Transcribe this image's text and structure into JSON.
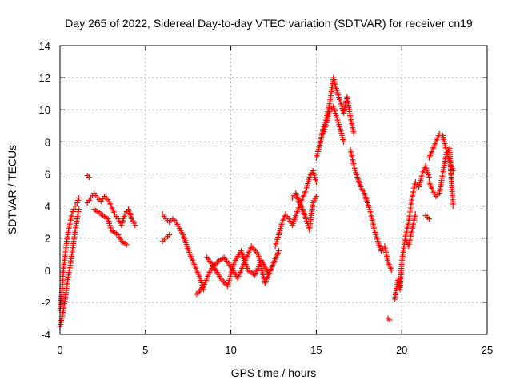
{
  "chart_data": {
    "type": "scatter",
    "title": "Day 265 of 2022, Sidereal Day-to-day VTEC variation (SDTVAR) for receiver cn19",
    "xlabel": "GPS time / hours",
    "ylabel": "SDTVAR / TECUs",
    "xlim": [
      0,
      25
    ],
    "ylim": [
      -4,
      14
    ],
    "xticks": [
      0,
      5,
      10,
      15,
      20,
      25
    ],
    "yticks": [
      -4,
      -2,
      0,
      2,
      4,
      6,
      8,
      10,
      12,
      14
    ],
    "grid": true,
    "marker": "+",
    "color": "#ff0000",
    "series": [
      {
        "name": "SDTVAR",
        "segments": [
          {
            "x": [
              0.0,
              0.1,
              0.2,
              0.3,
              0.4,
              0.5,
              0.6,
              0.7,
              0.8,
              0.9,
              1.0,
              1.1
            ],
            "y": [
              -3.5,
              -3.0,
              -2.5,
              -1.8,
              -1.0,
              -0.3,
              0.3,
              1.0,
              1.8,
              2.5,
              3.2,
              3.8
            ]
          },
          {
            "x": [
              0.0,
              0.1,
              0.2,
              0.3,
              0.4,
              0.5,
              0.6,
              0.7,
              0.8,
              0.9,
              1.0,
              1.1
            ],
            "y": [
              -2.5,
              -1.5,
              0.0,
              1.0,
              1.8,
              2.5,
              3.0,
              3.5,
              3.8,
              4.0,
              4.2,
              4.5
            ]
          },
          {
            "x": [
              1.6,
              1.7
            ],
            "y": [
              5.9,
              5.8
            ]
          },
          {
            "x": [
              1.6,
              1.8,
              2.0,
              2.2,
              2.4,
              2.6,
              2.8,
              3.0,
              3.2,
              3.4,
              3.6,
              3.8,
              4.0,
              4.2,
              4.4
            ],
            "y": [
              4.2,
              4.5,
              4.8,
              4.5,
              4.3,
              4.6,
              4.4,
              4.0,
              3.5,
              3.2,
              2.8,
              3.5,
              3.8,
              3.2,
              2.8
            ]
          },
          {
            "x": [
              2.0,
              2.4,
              2.8,
              3.0,
              3.4,
              3.6,
              3.9
            ],
            "y": [
              3.8,
              3.5,
              3.2,
              2.5,
              2.2,
              1.8,
              1.6
            ]
          },
          {
            "x": [
              6.0,
              6.2,
              6.4,
              6.6,
              6.8,
              7.0,
              7.2,
              7.4,
              7.6,
              7.8,
              8.0,
              8.2,
              8.4
            ],
            "y": [
              3.5,
              3.2,
              3.0,
              3.2,
              3.0,
              2.6,
              2.2,
              1.6,
              1.0,
              0.5,
              0.0,
              -0.5,
              -1.2
            ]
          },
          {
            "x": [
              6.0,
              6.2,
              6.4
            ],
            "y": [
              1.8,
              2.0,
              2.2
            ]
          },
          {
            "x": [
              8.0,
              8.4,
              8.8,
              9.2,
              9.6,
              10.0,
              10.4,
              10.8,
              11.2,
              11.6,
              12.0,
              12.4,
              12.8
            ],
            "y": [
              -1.5,
              -1.0,
              0.0,
              0.5,
              0.8,
              0.2,
              -0.5,
              0.5,
              1.5,
              1.0,
              -0.8,
              0.2,
              1.2
            ]
          },
          {
            "x": [
              8.6,
              9.0,
              9.4,
              9.8,
              10.2,
              10.6,
              11.0,
              11.4,
              11.8,
              12.2
            ],
            "y": [
              0.8,
              0.2,
              -0.5,
              -1.0,
              0.5,
              1.2,
              0.0,
              -0.3,
              0.6,
              -0.2
            ]
          },
          {
            "x": [
              12.6,
              12.8,
              13.0,
              13.2,
              13.4,
              13.6,
              13.8,
              14.0,
              14.2,
              14.4,
              14.6,
              14.8,
              15.0
            ],
            "y": [
              1.5,
              2.2,
              3.0,
              3.5,
              3.2,
              2.8,
              3.4,
              4.0,
              4.5,
              5.0,
              5.8,
              6.2,
              5.5
            ]
          },
          {
            "x": [
              13.6,
              13.8,
              14.0,
              14.2,
              14.4,
              14.6,
              14.8,
              15.0
            ],
            "y": [
              4.5,
              4.8,
              4.2,
              3.8,
              3.2,
              2.5,
              4.2,
              4.6
            ]
          },
          {
            "x": [
              15.0,
              15.2,
              15.4,
              15.6,
              15.8,
              16.0,
              16.2,
              16.4,
              16.6,
              16.8,
              17.0,
              17.2
            ],
            "y": [
              7.0,
              7.8,
              8.8,
              9.5,
              10.5,
              12.0,
              11.2,
              10.5,
              9.8,
              10.8,
              9.5,
              8.5
            ]
          },
          {
            "x": [
              15.4,
              15.6,
              15.8,
              16.0,
              16.2,
              16.4,
              16.6
            ],
            "y": [
              8.5,
              9.2,
              10.0,
              10.2,
              9.5,
              8.8,
              8.0
            ]
          },
          {
            "x": [
              17.0,
              17.2,
              17.4,
              17.6,
              17.8,
              18.0,
              18.2,
              18.4,
              18.6,
              18.8,
              19.0,
              19.2,
              19.4
            ],
            "y": [
              7.5,
              6.5,
              5.8,
              5.2,
              4.8,
              4.2,
              3.5,
              2.5,
              1.8,
              1.2,
              1.5,
              0.5,
              0.0
            ]
          },
          {
            "x": [
              19.2,
              19.3
            ],
            "y": [
              -3.0,
              -3.1
            ]
          },
          {
            "x": [
              19.6,
              19.7,
              19.8,
              19.9,
              20.0,
              20.2,
              20.4,
              20.6,
              20.8,
              21.0,
              21.2,
              21.4,
              21.6
            ],
            "y": [
              -1.8,
              -1.0,
              -0.5,
              -1.2,
              0.5,
              2.0,
              3.0,
              4.5,
              5.5,
              5.2,
              6.0,
              6.5,
              5.8
            ]
          },
          {
            "x": [
              20.2,
              20.4,
              20.6,
              20.8
            ],
            "y": [
              2.0,
              1.5,
              2.5,
              3.5
            ]
          },
          {
            "x": [
              21.4,
              21.6
            ],
            "y": [
              3.4,
              3.2
            ]
          },
          {
            "x": [
              21.6,
              21.8,
              22.0,
              22.2,
              22.4,
              22.6,
              22.8,
              23.0
            ],
            "y": [
              7.0,
              7.5,
              8.0,
              8.5,
              8.4,
              7.5,
              6.8,
              6.2
            ]
          },
          {
            "x": [
              21.6,
              21.8,
              22.0,
              22.2,
              22.4,
              22.6,
              22.8,
              23.0
            ],
            "y": [
              5.5,
              5.0,
              4.6,
              4.8,
              6.0,
              7.2,
              7.6,
              4.0
            ]
          }
        ]
      }
    ]
  }
}
